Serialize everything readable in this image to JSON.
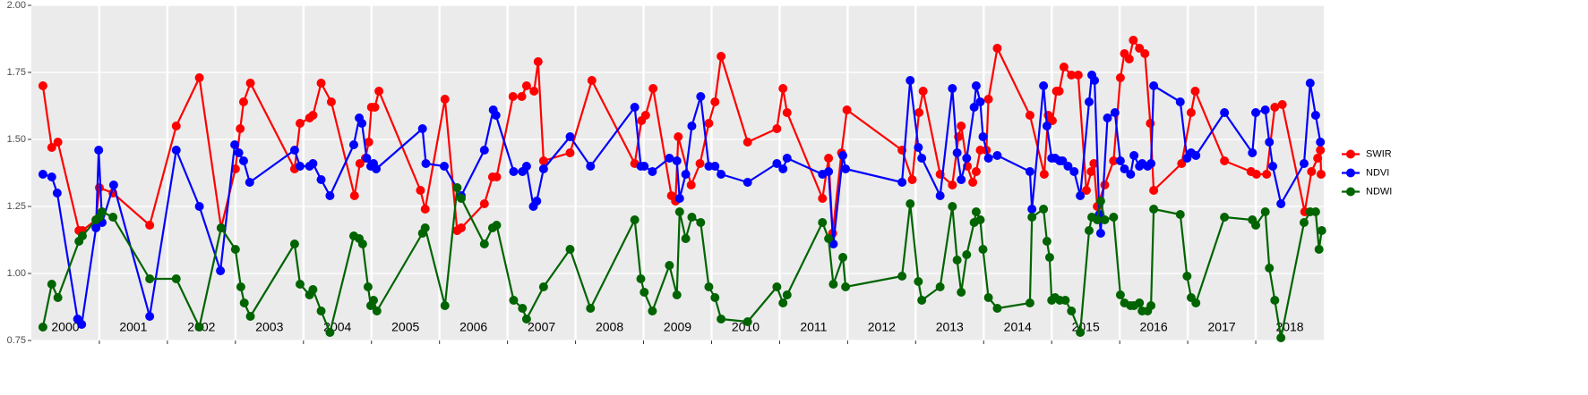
{
  "chart_data": {
    "type": "line",
    "ylim": [
      0.75,
      2.0
    ],
    "yticks": [
      0.75,
      {
        "value": 1.0,
        "label": "1.00"
      },
      1.25,
      {
        "value": 1.5,
        "label": "1.50"
      },
      1.75,
      {
        "value": 2.0,
        "label": "2.00"
      }
    ],
    "xlim": [
      2000,
      2019
    ],
    "x_gridlines": [
      2001,
      2002,
      2003,
      2004,
      2005,
      2006,
      2007,
      2008,
      2009,
      2010,
      2011,
      2012,
      2013,
      2014,
      2015,
      2016,
      2017,
      2018
    ],
    "xticks": [
      {
        "value": 2000.5,
        "label": "2000"
      },
      {
        "value": 2001.5,
        "label": "2001"
      },
      {
        "value": 2002.5,
        "label": "2002"
      },
      {
        "value": 2003.5,
        "label": "2003"
      },
      {
        "value": 2004.5,
        "label": "2004"
      },
      {
        "value": 2005.5,
        "label": "2005"
      },
      {
        "value": 2006.5,
        "label": "2006"
      },
      {
        "value": 2007.5,
        "label": "2007"
      },
      {
        "value": 2008.5,
        "label": "2008"
      },
      {
        "value": 2009.5,
        "label": "2009"
      },
      {
        "value": 2010.5,
        "label": "2010"
      },
      {
        "value": 2011.5,
        "label": "2011"
      },
      {
        "value": 2012.5,
        "label": "2012"
      },
      {
        "value": 2013.5,
        "label": "2013"
      },
      {
        "value": 2014.5,
        "label": "2014"
      },
      {
        "value": 2015.5,
        "label": "2015"
      },
      {
        "value": 2016.5,
        "label": "2016"
      },
      {
        "value": 2017.5,
        "label": "2017"
      },
      {
        "value": 2018.5,
        "label": "2018"
      }
    ],
    "grid": true,
    "legend": "right",
    "series": [
      {
        "name": "SWIR",
        "color": "#ff0000",
        "x": [
          2000.17,
          2000.3,
          2000.39,
          2000.7,
          2000.75,
          2000.95,
          2001.0,
          2001.2,
          2001.74,
          2002.13,
          2002.47,
          2002.79,
          2003.0,
          2003.07,
          2003.12,
          2003.22,
          2003.87,
          2003.95,
          2004.09,
          2004.14,
          2004.26,
          2004.41,
          2004.75,
          2004.83,
          2004.91,
          2004.96,
          2005.0,
          2005.05,
          2005.11,
          2005.72,
          2005.79,
          2006.08,
          2006.26,
          2006.32,
          2006.66,
          2006.78,
          2006.84,
          2007.08,
          2007.21,
          2007.28,
          2007.39,
          2007.45,
          2007.53,
          2007.92,
          2008.24,
          2008.87,
          2008.97,
          2009.03,
          2009.14,
          2009.41,
          2009.47,
          2009.51,
          2009.7,
          2009.83,
          2009.96,
          2010.05,
          2010.14,
          2010.53,
          2010.96,
          2011.05,
          2011.11,
          2011.63,
          2011.72,
          2011.78,
          2011.91,
          2011.99,
          2012.8,
          2012.95,
          2013.05,
          2013.11,
          2013.36,
          2013.54,
          2013.63,
          2013.67,
          2013.76,
          2013.84,
          2013.89,
          2013.95,
          2014.04,
          2014.07,
          2014.2,
          2014.68,
          2014.89,
          2014.95,
          2015.01,
          2015.07,
          2015.11,
          2015.18,
          2015.29,
          2015.39,
          2015.51,
          2015.58,
          2015.62,
          2015.67,
          2015.78,
          2015.91,
          2016.01,
          2016.07,
          2016.14,
          2016.2,
          2016.29,
          2016.37,
          2016.45,
          2016.5,
          2016.91,
          2017.05,
          2017.11,
          2017.54,
          2017.93,
          2018.01,
          2018.16,
          2018.28,
          2018.39,
          2018.72,
          2018.82,
          2018.91,
          2018.95,
          2018.96
        ],
        "values": [
          1.7,
          1.47,
          1.49,
          1.16,
          1.16,
          1.2,
          1.32,
          1.3,
          1.18,
          1.55,
          1.73,
          1.17,
          1.39,
          1.54,
          1.64,
          1.71,
          1.39,
          1.56,
          1.58,
          1.59,
          1.71,
          1.64,
          1.29,
          1.41,
          1.43,
          1.49,
          1.62,
          1.62,
          1.68,
          1.31,
          1.24,
          1.65,
          1.16,
          1.17,
          1.26,
          1.36,
          1.36,
          1.66,
          1.66,
          1.7,
          1.68,
          1.79,
          1.42,
          1.45,
          1.72,
          1.41,
          1.57,
          1.59,
          1.69,
          1.29,
          1.27,
          1.51,
          1.33,
          1.41,
          1.56,
          1.64,
          1.81,
          1.49,
          1.54,
          1.69,
          1.6,
          1.28,
          1.43,
          1.15,
          1.45,
          1.61,
          1.46,
          1.35,
          1.6,
          1.68,
          1.37,
          1.33,
          1.51,
          1.55,
          1.4,
          1.34,
          1.38,
          1.46,
          1.46,
          1.65,
          1.84,
          1.59,
          1.37,
          1.59,
          1.57,
          1.68,
          1.68,
          1.77,
          1.74,
          1.74,
          1.31,
          1.38,
          1.41,
          1.25,
          1.33,
          1.42,
          1.73,
          1.82,
          1.8,
          1.87,
          1.84,
          1.82,
          1.56,
          1.31,
          1.41,
          1.6,
          1.68,
          1.42,
          1.38,
          1.37,
          1.37,
          1.62,
          1.63,
          1.23,
          1.38,
          1.43,
          1.46,
          1.37
        ]
      },
      {
        "name": "NDVI",
        "color": "#0000ff",
        "x": [
          2000.17,
          2000.3,
          2000.38,
          2000.68,
          2000.74,
          2000.95,
          2000.99,
          2001.04,
          2001.21,
          2001.74,
          2002.13,
          2002.47,
          2002.78,
          2002.99,
          2003.05,
          2003.12,
          2003.21,
          2003.87,
          2003.95,
          2004.09,
          2004.14,
          2004.26,
          2004.39,
          2004.74,
          2004.82,
          2004.86,
          2004.93,
          2004.99,
          2005.03,
          2005.07,
          2005.75,
          2005.8,
          2006.07,
          2006.32,
          2006.66,
          2006.79,
          2006.83,
          2007.09,
          2007.22,
          2007.28,
          2007.38,
          2007.43,
          2007.53,
          2007.92,
          2008.22,
          2008.87,
          2008.96,
          2009.01,
          2009.13,
          2009.38,
          2009.49,
          2009.53,
          2009.62,
          2009.71,
          2009.84,
          2009.96,
          2010.05,
          2010.14,
          2010.53,
          2010.96,
          2011.05,
          2011.11,
          2011.63,
          2011.72,
          2011.79,
          2011.93,
          2011.97,
          2012.8,
          2012.92,
          2013.04,
          2013.09,
          2013.36,
          2013.54,
          2013.61,
          2013.67,
          2013.75,
          2013.86,
          2013.89,
          2013.95,
          2013.99,
          2014.07,
          2014.2,
          2014.68,
          2014.71,
          2014.88,
          2014.93,
          2015.0,
          2015.05,
          2015.12,
          2015.16,
          2015.24,
          2015.33,
          2015.42,
          2015.55,
          2015.59,
          2015.63,
          2015.7,
          2015.72,
          2015.82,
          2015.93,
          2016.01,
          2016.07,
          2016.16,
          2016.21,
          2016.29,
          2016.33,
          2016.41,
          2016.46,
          2016.5,
          2016.89,
          2016.99,
          2017.05,
          2017.12,
          2017.54,
          2017.95,
          2018.0,
          2018.14,
          2018.2,
          2018.25,
          2018.37,
          2018.71,
          2018.8,
          2018.88,
          2018.95
        ],
        "values": [
          1.37,
          1.36,
          1.3,
          0.83,
          0.81,
          1.17,
          1.46,
          1.19,
          1.33,
          0.84,
          1.46,
          1.25,
          1.01,
          1.48,
          1.45,
          1.42,
          1.34,
          1.46,
          1.4,
          1.4,
          1.41,
          1.35,
          1.29,
          1.48,
          1.58,
          1.56,
          1.43,
          1.4,
          1.41,
          1.39,
          1.54,
          1.41,
          1.4,
          1.29,
          1.46,
          1.61,
          1.59,
          1.38,
          1.38,
          1.4,
          1.25,
          1.27,
          1.39,
          1.51,
          1.4,
          1.62,
          1.4,
          1.4,
          1.38,
          1.43,
          1.42,
          1.28,
          1.37,
          1.55,
          1.66,
          1.4,
          1.4,
          1.37,
          1.34,
          1.41,
          1.39,
          1.43,
          1.37,
          1.38,
          1.11,
          1.44,
          1.39,
          1.34,
          1.72,
          1.47,
          1.43,
          1.29,
          1.69,
          1.45,
          1.35,
          1.43,
          1.62,
          1.7,
          1.64,
          1.51,
          1.43,
          1.44,
          1.38,
          1.24,
          1.7,
          1.55,
          1.43,
          1.43,
          1.42,
          1.42,
          1.4,
          1.38,
          1.29,
          1.64,
          1.74,
          1.72,
          1.22,
          1.15,
          1.58,
          1.6,
          1.42,
          1.39,
          1.37,
          1.44,
          1.4,
          1.41,
          1.4,
          1.41,
          1.7,
          1.64,
          1.43,
          1.45,
          1.44,
          1.6,
          1.45,
          1.6,
          1.61,
          1.49,
          1.4,
          1.26,
          1.41,
          1.71,
          1.59,
          1.49
        ]
      },
      {
        "name": "NDWI",
        "color": "#006400",
        "x": [
          2000.17,
          2000.3,
          2000.39,
          2000.7,
          2000.75,
          2000.95,
          2001.0,
          2001.04,
          2001.2,
          2001.74,
          2002.13,
          2002.47,
          2002.79,
          2003.0,
          2003.08,
          2003.13,
          2003.22,
          2003.87,
          2003.95,
          2004.09,
          2004.14,
          2004.26,
          2004.39,
          2004.74,
          2004.82,
          2004.87,
          2004.95,
          2004.99,
          2005.03,
          2005.08,
          2005.75,
          2005.79,
          2006.08,
          2006.26,
          2006.32,
          2006.66,
          2006.78,
          2006.84,
          2007.09,
          2007.22,
          2007.28,
          2007.53,
          2007.92,
          2008.22,
          2008.87,
          2008.96,
          2009.01,
          2009.13,
          2009.38,
          2009.49,
          2009.53,
          2009.62,
          2009.71,
          2009.84,
          2009.96,
          2010.05,
          2010.14,
          2010.53,
          2010.96,
          2011.05,
          2011.11,
          2011.63,
          2011.72,
          2011.79,
          2011.93,
          2011.97,
          2012.8,
          2012.92,
          2013.04,
          2013.09,
          2013.36,
          2013.54,
          2013.61,
          2013.67,
          2013.75,
          2013.86,
          2013.89,
          2013.95,
          2013.99,
          2014.07,
          2014.2,
          2014.68,
          2014.71,
          2014.88,
          2014.93,
          2014.97,
          2015.0,
          2015.05,
          2015.12,
          2015.2,
          2015.29,
          2015.42,
          2015.55,
          2015.59,
          2015.67,
          2015.72,
          2015.78,
          2015.91,
          2016.01,
          2016.07,
          2016.16,
          2016.21,
          2016.29,
          2016.33,
          2016.41,
          2016.46,
          2016.5,
          2016.89,
          2016.99,
          2017.05,
          2017.12,
          2017.54,
          2017.95,
          2018.0,
          2018.14,
          2018.2,
          2018.28,
          2018.37,
          2018.71,
          2018.8,
          2018.88,
          2018.93,
          2018.97
        ],
        "values": [
          0.8,
          0.96,
          0.91,
          1.12,
          1.14,
          1.2,
          1.21,
          1.23,
          1.21,
          0.98,
          0.98,
          0.8,
          1.17,
          1.09,
          0.95,
          0.89,
          0.84,
          1.11,
          0.96,
          0.92,
          0.94,
          0.86,
          0.78,
          1.14,
          1.13,
          1.11,
          0.95,
          0.88,
          0.9,
          0.86,
          1.15,
          1.17,
          0.88,
          1.32,
          1.28,
          1.11,
          1.17,
          1.18,
          0.9,
          0.87,
          0.83,
          0.95,
          1.09,
          0.87,
          1.2,
          0.98,
          0.93,
          0.86,
          1.03,
          0.92,
          1.23,
          1.13,
          1.21,
          1.19,
          0.95,
          0.91,
          0.83,
          0.82,
          0.95,
          0.89,
          0.92,
          1.19,
          1.13,
          0.96,
          1.06,
          0.95,
          0.99,
          1.26,
          0.97,
          0.9,
          0.95,
          1.25,
          1.05,
          0.93,
          1.07,
          1.19,
          1.23,
          1.2,
          1.09,
          0.91,
          0.87,
          0.89,
          1.21,
          1.24,
          1.12,
          1.06,
          0.9,
          0.91,
          0.9,
          0.9,
          0.86,
          0.78,
          1.16,
          1.21,
          1.2,
          1.27,
          1.2,
          1.21,
          0.92,
          0.89,
          0.88,
          0.88,
          0.89,
          0.86,
          0.86,
          0.88,
          1.24,
          1.22,
          0.99,
          0.91,
          0.89,
          1.21,
          1.2,
          1.18,
          1.23,
          1.02,
          0.9,
          0.76,
          1.19,
          1.23,
          1.23,
          1.09,
          1.16
        ]
      }
    ]
  }
}
